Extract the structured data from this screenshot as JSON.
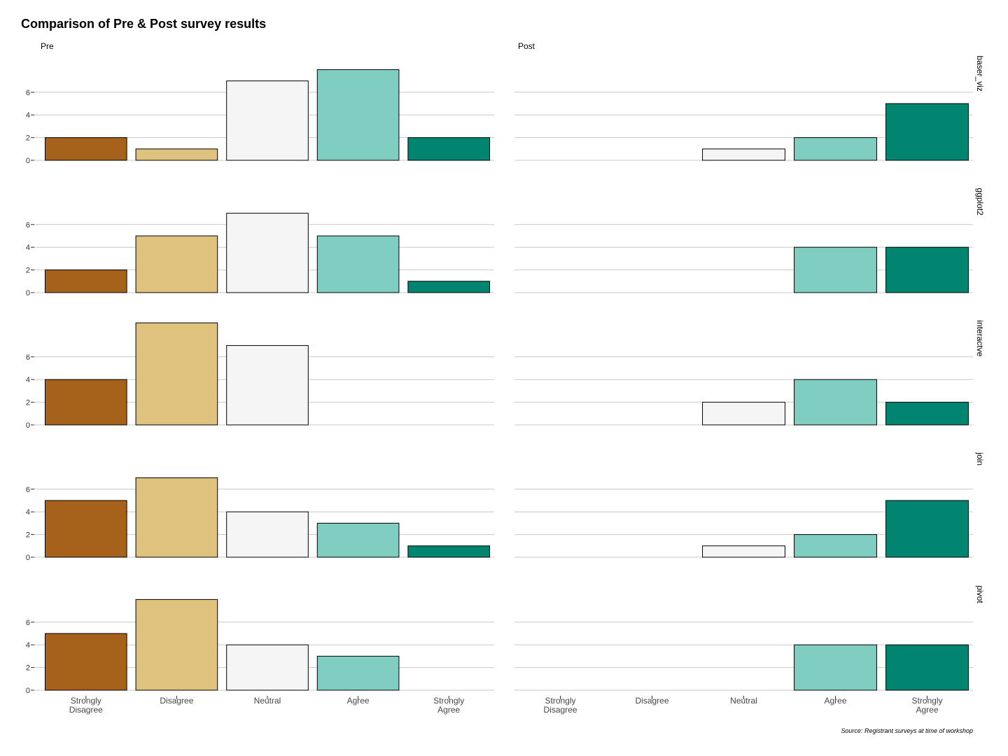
{
  "chart_data": {
    "type": "bar",
    "title": "Comparison of Pre & Post survey results",
    "source": "Source: Registrant surveys at time of workshop",
    "columns": [
      "Pre",
      "Post"
    ],
    "rows": [
      "baser_viz",
      "ggplot2",
      "interactve",
      "join",
      "pivot"
    ],
    "categories": [
      [
        "Strongly",
        "Disagree"
      ],
      [
        "Disagree"
      ],
      [
        "Neutral"
      ],
      [
        "Agree"
      ],
      [
        "Strongly",
        "Agree"
      ]
    ],
    "category_colors": [
      "#a6611a",
      "#dfc27d",
      "#f5f5f5",
      "#80cdc1",
      "#018571"
    ],
    "y_ticks": [
      "0",
      "2",
      "4",
      "6"
    ],
    "ylim": [
      0,
      8
    ],
    "grid": true,
    "panels": [
      {
        "row": "baser_viz",
        "column": "Pre",
        "values": [
          2,
          1,
          7,
          8,
          2
        ]
      },
      {
        "row": "baser_viz",
        "column": "Post",
        "values": [
          0,
          0,
          1,
          2,
          5
        ]
      },
      {
        "row": "ggplot2",
        "column": "Pre",
        "values": [
          2,
          5,
          7,
          5,
          1
        ]
      },
      {
        "row": "ggplot2",
        "column": "Post",
        "values": [
          0,
          0,
          0,
          4,
          4
        ]
      },
      {
        "row": "interactve",
        "column": "Pre",
        "values": [
          4,
          9,
          7,
          0,
          0
        ]
      },
      {
        "row": "interactve",
        "column": "Post",
        "values": [
          0,
          0,
          2,
          4,
          2
        ]
      },
      {
        "row": "join",
        "column": "Pre",
        "values": [
          5,
          7,
          4,
          3,
          1
        ]
      },
      {
        "row": "join",
        "column": "Post",
        "values": [
          0,
          0,
          1,
          2,
          5
        ]
      },
      {
        "row": "pivot",
        "column": "Pre",
        "values": [
          5,
          8,
          4,
          3,
          0
        ]
      },
      {
        "row": "pivot",
        "column": "Post",
        "values": [
          0,
          0,
          0,
          4,
          4
        ]
      }
    ]
  }
}
